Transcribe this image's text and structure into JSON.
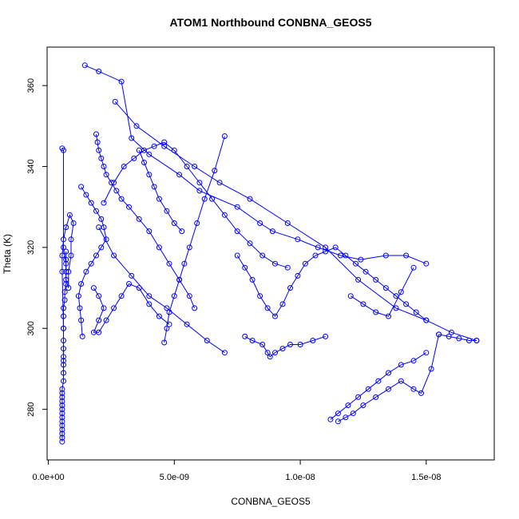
{
  "chart_data": {
    "type": "line",
    "title": "ATOM1 Northbound CONBNA_GEOS5",
    "xlabel": "CONBNA_GEOS5",
    "ylabel": "Theta (K)",
    "xlim": [
      -5e-11,
      1.77e-08
    ],
    "ylim": [
      267.5,
      369.5
    ],
    "x_ticks": [
      {
        "value": 0,
        "label": "0.0e+00"
      },
      {
        "value": 5e-09,
        "label": "5.0e-09"
      },
      {
        "value": 1e-08,
        "label": "1.0e-08"
      },
      {
        "value": 1.5e-08,
        "label": "1.5e-08"
      }
    ],
    "y_ticks": [
      {
        "value": 280,
        "label": "280"
      },
      {
        "value": 300,
        "label": "300"
      },
      {
        "value": 320,
        "label": "320"
      },
      {
        "value": 340,
        "label": "340"
      },
      {
        "value": 360,
        "label": "360"
      }
    ],
    "marker": "open-circle",
    "line_color": "#0000ff",
    "series": [
      {
        "x": [
          5.5e-10,
          5.5e-10,
          5.5e-10,
          5.5e-10,
          5.5e-10,
          5.5e-10,
          5.5e-10,
          5.5e-10,
          5.5e-10,
          5.5e-10,
          5.5e-10,
          5.5e-10,
          5.5e-10,
          5.5e-10,
          6e-10,
          6e-10,
          6e-10,
          6e-10,
          6e-10,
          6e-10,
          6e-10,
          6e-10,
          6e-10,
          6e-10,
          6.5e-10,
          6.5e-10,
          7e-10,
          7e-10,
          7e-10,
          7e-10
        ],
        "y": [
          272,
          273,
          274,
          275,
          276,
          277,
          278,
          279,
          280,
          281,
          282,
          283,
          284,
          285,
          287,
          289,
          291,
          292,
          293,
          295,
          297,
          300,
          303,
          305,
          307,
          309,
          311,
          314,
          317,
          319
        ]
      },
      {
        "x": [
          5.5e-10,
          6e-10,
          6e-10,
          7e-10,
          7e-10,
          8e-10,
          8e-10,
          9e-10,
          9e-10,
          1e-09,
          8.5e-10,
          7e-10,
          6e-10,
          5.5e-10,
          5.5e-10,
          6e-10
        ],
        "y": [
          344.5,
          344,
          320,
          316,
          312,
          310,
          314,
          318,
          322,
          326,
          328,
          325,
          322,
          318,
          314,
          300
        ]
      },
      {
        "x": [
          1.45e-09,
          2e-09,
          2.9e-09,
          3.3e-09,
          4e-09,
          5.2e-09,
          6e-09,
          7.5e-09,
          8.4e-09,
          8.9e-09,
          9.9e-09,
          1.07e-08,
          1.16e-08,
          1.24e-08,
          1.34e-08,
          1.42e-08,
          1.5e-08
        ],
        "y": [
          365,
          363.5,
          361,
          347,
          343,
          338,
          334,
          330,
          326,
          324,
          322,
          320,
          318,
          317,
          318,
          318,
          316
        ]
      },
      {
        "x": [
          2.65e-09,
          3.5e-09,
          4.6e-09,
          5.8e-09,
          6.8e-09,
          8e-09,
          9.5e-09,
          1.1e-08,
          1.23e-08,
          1.38e-08,
          1.5e-08,
          1.6e-08,
          1.7e-08
        ],
        "y": [
          356,
          350,
          345,
          340,
          336,
          332,
          326,
          320,
          312,
          305,
          302,
          299,
          297
        ]
      },
      {
        "x": [
          1.9e-09,
          1.95e-09,
          2e-09,
          2.1e-09,
          2.2e-09,
          2.3e-09,
          2.5e-09,
          2.7e-09,
          2.9e-09,
          3.2e-09,
          3.6e-09,
          4e-09,
          4.4e-09,
          4.8e-09,
          5.2e-09,
          5.6e-09,
          5.8e-09
        ],
        "y": [
          348,
          346,
          344,
          342,
          340,
          338,
          336,
          334,
          332,
          330,
          327,
          324,
          320,
          316,
          312,
          308,
          305
        ]
      },
      {
        "x": [
          1.3e-09,
          1.5e-09,
          1.7e-09,
          1.9e-09,
          2.1e-09,
          2.2e-09,
          2.3e-09,
          2.1e-09,
          1.9e-09,
          1.7e-09,
          1.5e-09,
          1.3e-09,
          1.2e-09,
          1.25e-09,
          1.3e-09,
          1.35e-09
        ],
        "y": [
          335,
          333,
          331,
          329,
          327,
          325,
          322,
          320,
          318,
          316,
          314,
          311,
          308,
          305,
          302,
          298
        ]
      },
      {
        "x": [
          2e-09,
          2.6e-09,
          3.3e-09,
          4e-09,
          4.7e-09,
          5.5e-09,
          6.3e-09,
          7e-09
        ],
        "y": [
          325,
          318,
          313,
          308,
          305,
          301,
          297,
          294
        ]
      },
      {
        "x": [
          4.6e-09,
          4.7e-09,
          4.8e-09,
          5e-09,
          5.2e-09,
          5.4e-09,
          5.6e-09,
          5.9e-09,
          6.2e-09,
          6.6e-09,
          7e-09
        ],
        "y": [
          296.5,
          300,
          304,
          308,
          312,
          316,
          320,
          326,
          332,
          339,
          347.5
        ]
      },
      {
        "x": [
          7.5e-09,
          7.8e-09,
          8.1e-09,
          8.4e-09,
          8.7e-09,
          9e-09,
          9.3e-09,
          9.6e-09,
          9.9e-09,
          1.02e-08,
          1.06e-08,
          1.1e-08,
          1.14e-08,
          1.18e-08,
          1.22e-08,
          1.26e-08,
          1.3e-08,
          1.34e-08,
          1.38e-08,
          1.42e-08,
          1.46e-08,
          1.5e-08
        ],
        "y": [
          318,
          315,
          312,
          308,
          305,
          303,
          306,
          310,
          313,
          316,
          318,
          319,
          320,
          318,
          316,
          314,
          312,
          310,
          308,
          306,
          304,
          302
        ]
      },
      {
        "x": [
          7.8e-09,
          8.1e-09,
          8.5e-09,
          8.7e-09,
          8.8e-09,
          9e-09,
          9.3e-09,
          9.6e-09,
          1e-08,
          1.05e-08,
          1.1e-08
        ],
        "y": [
          298,
          297,
          296,
          294,
          293,
          294,
          295,
          296,
          296,
          297,
          298
        ]
      },
      {
        "x": [
          1.12e-08,
          1.15e-08,
          1.19e-08,
          1.23e-08,
          1.27e-08,
          1.31e-08,
          1.35e-08,
          1.4e-08,
          1.45e-08,
          1.5e-08
        ],
        "y": [
          277.5,
          279,
          281,
          283,
          285,
          287,
          289,
          291,
          292,
          294
        ]
      },
      {
        "x": [
          1.15e-08,
          1.18e-08,
          1.21e-08,
          1.25e-08,
          1.3e-08,
          1.35e-08,
          1.4e-08,
          1.45e-08,
          1.48e-08,
          1.52e-08,
          1.55e-08
        ],
        "y": [
          277,
          278,
          279,
          281,
          283,
          285,
          287,
          285,
          284,
          290,
          298.5
        ]
      },
      {
        "x": [
          1.55e-08,
          1.59e-08,
          1.63e-08,
          1.67e-08,
          1.7e-08
        ],
        "y": [
          298.5,
          298,
          297.5,
          297,
          297
        ]
      },
      {
        "x": [
          2.2e-09,
          2.6e-09,
          3e-09,
          3.4e-09,
          3.8e-09,
          4.2e-09,
          4.6e-09,
          5e-09,
          5.5e-09,
          6e-09,
          6.5e-09,
          7e-09,
          7.5e-09,
          8e-09,
          8.5e-09,
          9e-09,
          9.5e-09
        ],
        "y": [
          331,
          336,
          340,
          342,
          344,
          345,
          346,
          344,
          340,
          336,
          332,
          328,
          324,
          321,
          318,
          316,
          315
        ]
      },
      {
        "x": [
          1.8e-09,
          2e-09,
          2.2e-09,
          2e-09,
          1.8e-09,
          2e-09,
          2.3e-09,
          2.6e-09,
          2.9e-09,
          3.2e-09,
          3.6e-09,
          4e-09,
          4.4e-09,
          4.8e-09
        ],
        "y": [
          310,
          308,
          305,
          302,
          299,
          299,
          302,
          305,
          308,
          311,
          310,
          306,
          303,
          301
        ]
      },
      {
        "x": [
          1.2e-08,
          1.25e-08,
          1.3e-08,
          1.35e-08,
          1.4e-08,
          1.45e-08
        ],
        "y": [
          308,
          306,
          304,
          303,
          309,
          315
        ]
      },
      {
        "x": [
          3.6e-09,
          3.8e-09,
          4e-09,
          4.2e-09,
          4.4e-09,
          4.7e-09,
          5e-09,
          5.3e-09
        ],
        "y": [
          344,
          341,
          338,
          335,
          332,
          329,
          326,
          324
        ]
      }
    ]
  }
}
